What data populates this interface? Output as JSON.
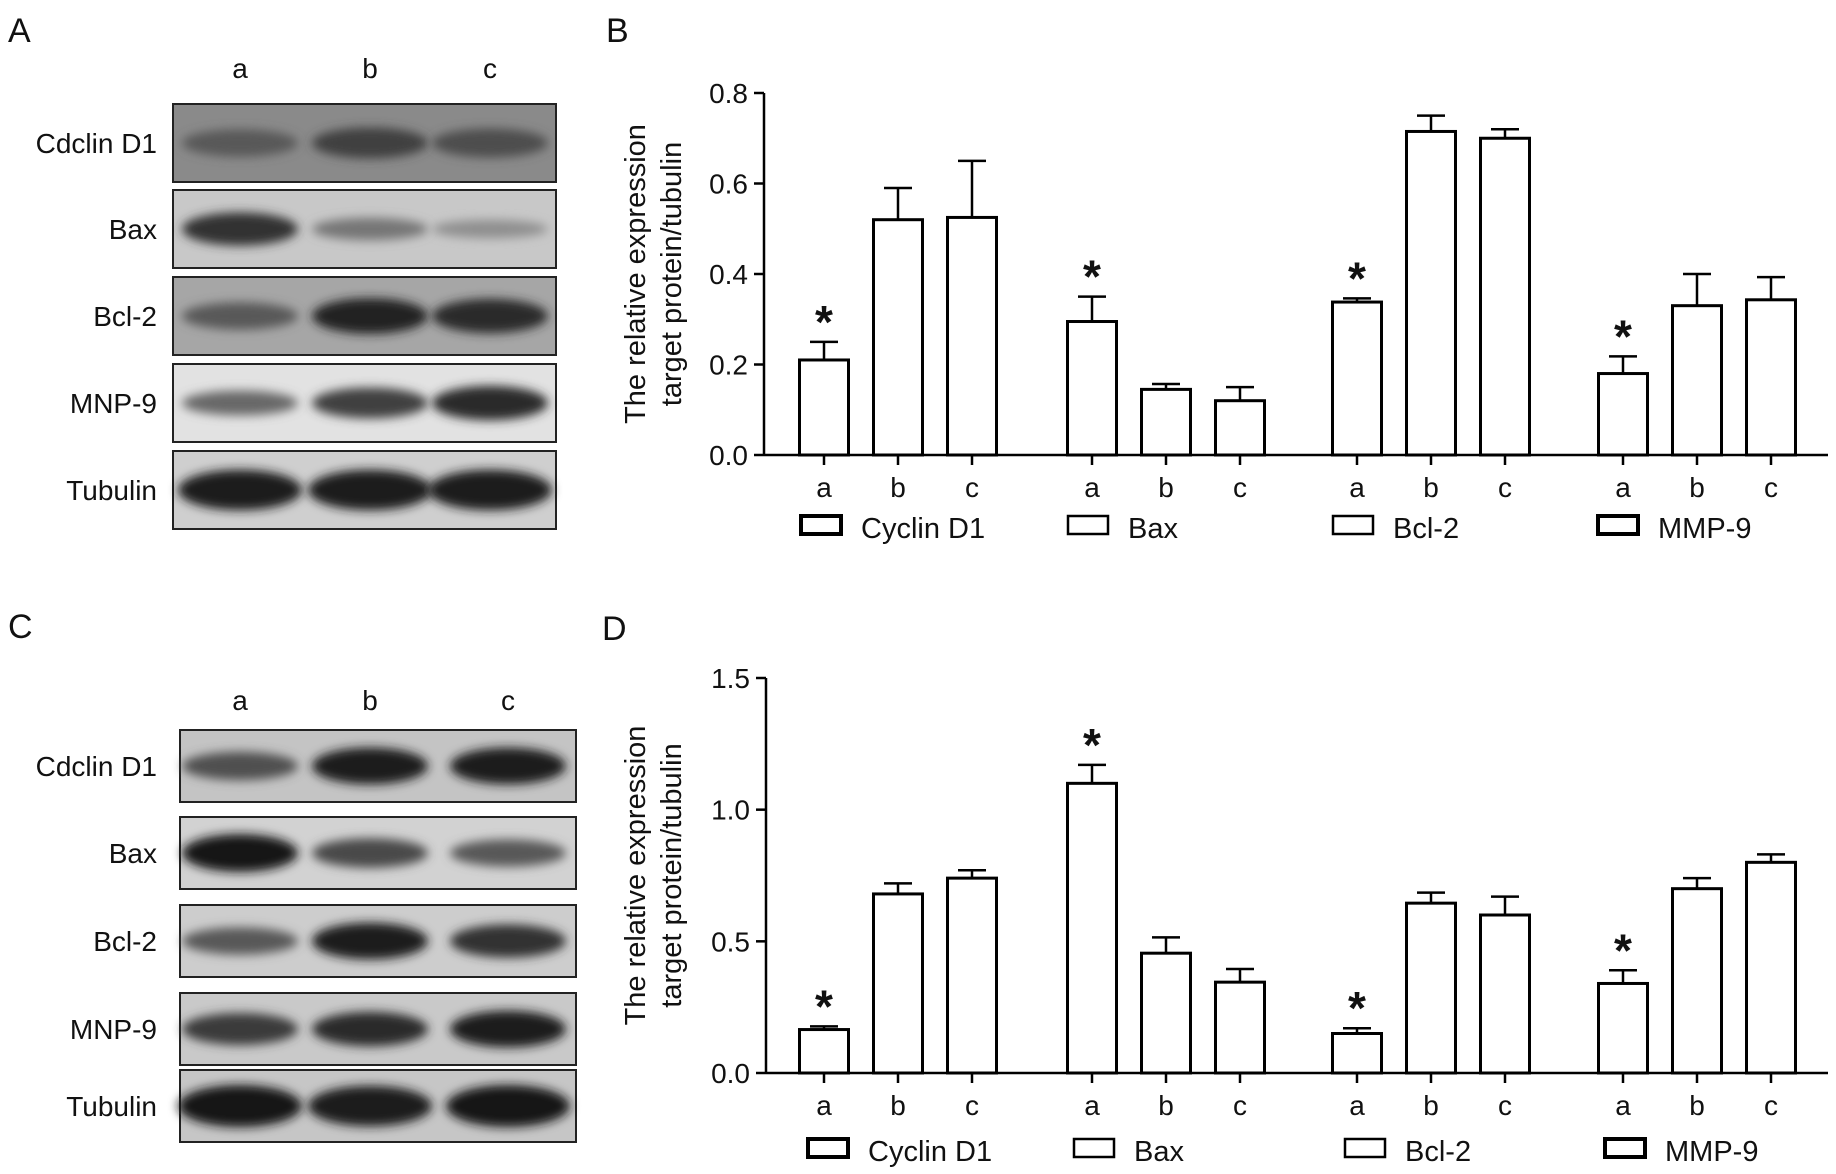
{
  "panels": {
    "A": {
      "letter": "A",
      "lanes": [
        "a",
        "b",
        "c"
      ],
      "proteins": [
        "Cdclin D1",
        "Bax",
        "Bcl-2",
        "MNP-9",
        "Tubulin"
      ],
      "band_intensity": [
        [
          0.55,
          0.7,
          0.62
        ],
        [
          0.8,
          0.35,
          0.18
        ],
        [
          0.55,
          0.9,
          0.85
        ],
        [
          0.45,
          0.7,
          0.85
        ],
        [
          0.95,
          0.95,
          0.95
        ]
      ]
    },
    "C": {
      "letter": "C",
      "lanes": [
        "a",
        "b",
        "c"
      ],
      "proteins": [
        "Cdclin D1",
        "Bax",
        "Bcl-2",
        "MNP-9",
        "Tubulin"
      ],
      "band_intensity": [
        [
          0.6,
          0.95,
          0.95
        ],
        [
          1.0,
          0.65,
          0.55
        ],
        [
          0.55,
          0.95,
          0.8
        ],
        [
          0.75,
          0.85,
          0.95
        ],
        [
          1.0,
          0.95,
          1.0
        ]
      ]
    }
  },
  "chart_data": [
    {
      "panel": "B",
      "type": "bar",
      "ylabel": [
        "The relative expression",
        "target protein/tubulin"
      ],
      "ylim": [
        0,
        0.8
      ],
      "yticks": [
        "0.0",
        "0.2",
        "0.4",
        "0.6",
        "0.8"
      ],
      "ytick_values": [
        0,
        0.2,
        0.4,
        0.6,
        0.8
      ],
      "categories": [
        "a",
        "b",
        "c"
      ],
      "series": [
        {
          "name": "Cyclin D1",
          "values": [
            0.21,
            0.52,
            0.525
          ],
          "errors": [
            0.04,
            0.07,
            0.125
          ],
          "significant": [
            true,
            false,
            false
          ]
        },
        {
          "name": "Bax",
          "values": [
            0.295,
            0.145,
            0.12
          ],
          "errors": [
            0.055,
            0.012,
            0.03
          ],
          "significant": [
            true,
            false,
            false
          ]
        },
        {
          "name": "Bcl-2",
          "values": [
            0.338,
            0.715,
            0.7
          ],
          "errors": [
            0.008,
            0.035,
            0.02
          ],
          "significant": [
            true,
            false,
            false
          ]
        },
        {
          "name": "MMP-9",
          "values": [
            0.18,
            0.33,
            0.343
          ],
          "errors": [
            0.038,
            0.07,
            0.05
          ],
          "significant": [
            true,
            false,
            false
          ]
        }
      ],
      "marker": "*"
    },
    {
      "panel": "D",
      "type": "bar",
      "ylabel": [
        "The relative expression",
        "target protein/tubulin"
      ],
      "ylim": [
        0,
        1.5
      ],
      "yticks": [
        "0.0",
        "0.5",
        "1.0",
        "1.5"
      ],
      "ytick_values": [
        0,
        0.5,
        1.0,
        1.5
      ],
      "categories": [
        "a",
        "b",
        "c"
      ],
      "series": [
        {
          "name": "Cyclin D1",
          "values": [
            0.165,
            0.68,
            0.74
          ],
          "errors": [
            0.012,
            0.04,
            0.03
          ],
          "significant": [
            true,
            false,
            false
          ]
        },
        {
          "name": "Bax",
          "values": [
            1.1,
            0.455,
            0.345
          ],
          "errors": [
            0.07,
            0.06,
            0.05
          ],
          "significant": [
            true,
            false,
            false
          ]
        },
        {
          "name": "Bcl-2",
          "values": [
            0.15,
            0.645,
            0.6
          ],
          "errors": [
            0.02,
            0.04,
            0.07
          ],
          "significant": [
            true,
            false,
            false
          ]
        },
        {
          "name": "MMP-9",
          "values": [
            0.34,
            0.7,
            0.8
          ],
          "errors": [
            0.05,
            0.04,
            0.03
          ],
          "significant": [
            true,
            false,
            false
          ]
        }
      ],
      "marker": "*"
    }
  ]
}
